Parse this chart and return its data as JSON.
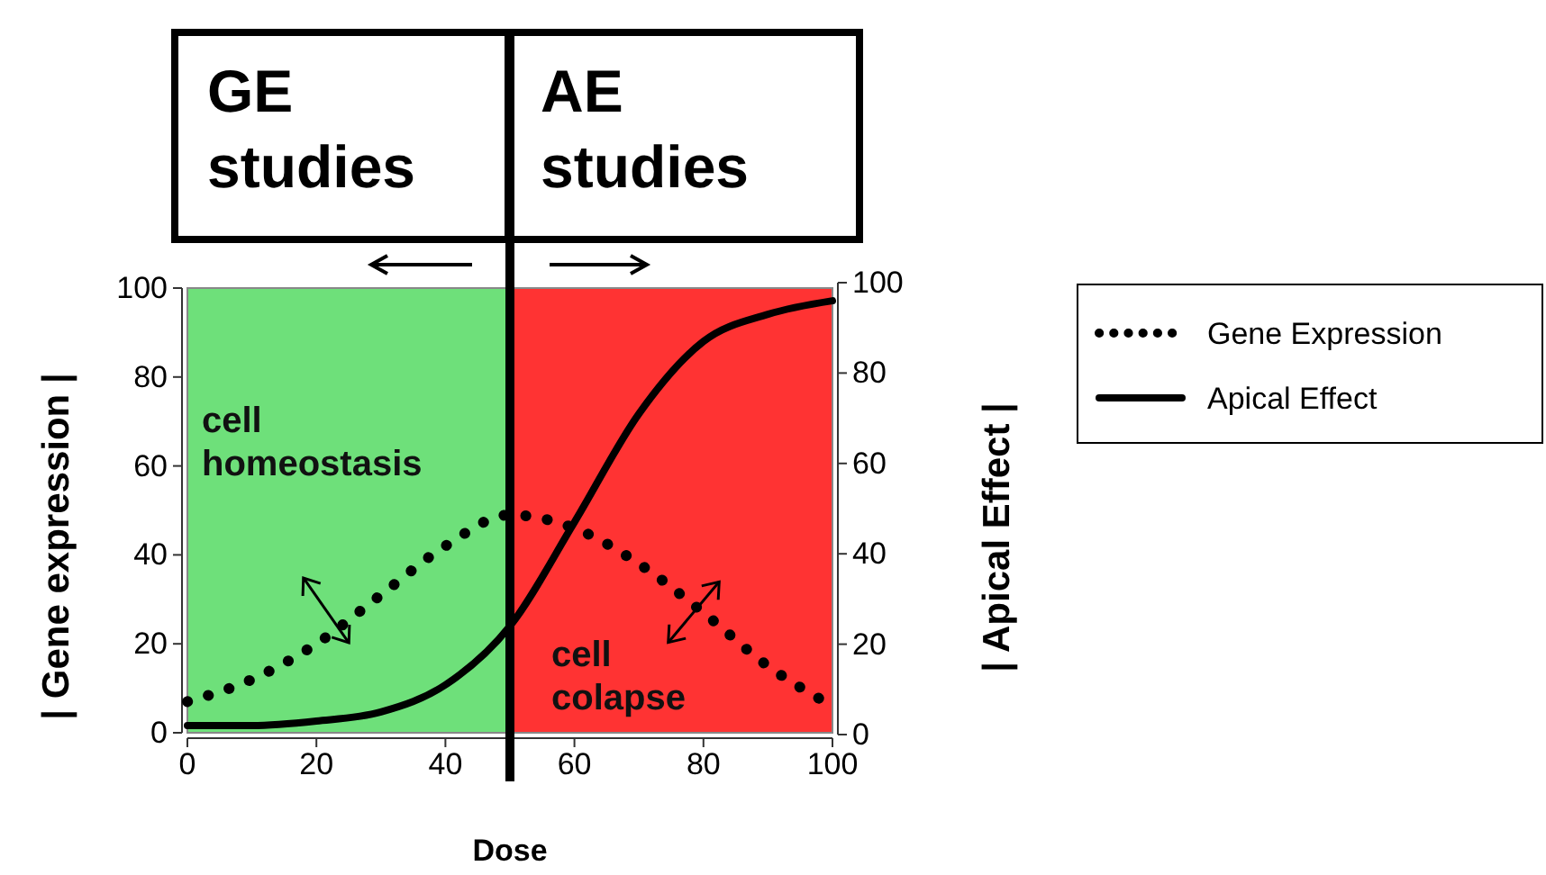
{
  "chart_data": {
    "type": "line",
    "xlabel": "Dose",
    "ylabel": "| Gene expression |",
    "y2label": "| Apical Effect |",
    "x": [
      0,
      10,
      20,
      30,
      40,
      50,
      60,
      70,
      80,
      90,
      100
    ],
    "series": [
      {
        "name": "Gene Expression",
        "color": "#000000",
        "line_style": "dotted",
        "values": [
          7,
          12,
          20,
          31,
          42,
          49,
          46,
          38,
          27,
          15,
          6
        ]
      },
      {
        "name": "Apical Effect",
        "color": "#000000",
        "line_style": "solid",
        "axis": "y2",
        "values": [
          2,
          2,
          3,
          5,
          11,
          24,
          47,
          71,
          87,
          93,
          96
        ]
      }
    ],
    "xlim": [
      0,
      100
    ],
    "xticks": [
      0,
      20,
      40,
      60,
      80,
      100
    ],
    "ylim": [
      0,
      100
    ],
    "yticks": [
      0,
      20,
      40,
      60,
      80,
      100
    ],
    "y2lim": [
      0,
      100
    ],
    "y2ticks": [
      0,
      20,
      40,
      60,
      80,
      100
    ],
    "bands": [
      {
        "axis": "x",
        "from": 0,
        "to": 50,
        "color": "#6ee07a"
      },
      {
        "axis": "x",
        "from": 50,
        "to": 100,
        "color": "#ff3333"
      }
    ],
    "ref_lines": [
      {
        "axis": "x",
        "value": 50,
        "color": "#000000"
      }
    ],
    "annotations": [
      "GE studies",
      "AE studies",
      "cell homeostasis",
      "cell colapse"
    ],
    "legend": "top right",
    "grid": false,
    "marker": "none"
  }
}
